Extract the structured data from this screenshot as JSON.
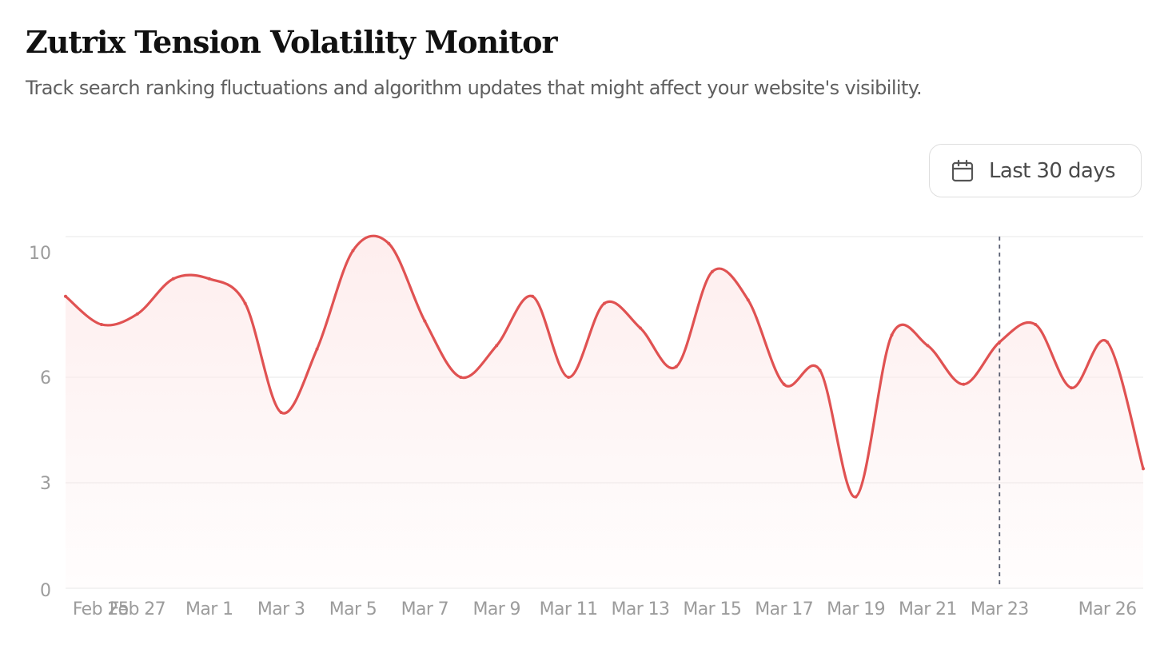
{
  "header": {
    "title": "Zutrix Tension Volatility Monitor",
    "subtitle": "Track search ranking fluctuations and algorithm updates that might affect your website's visibility."
  },
  "range_selector": {
    "label": "Last 30 days",
    "icon": "calendar-icon"
  },
  "colors": {
    "line": "#e05252",
    "fill": "#fde8e8",
    "grid": "#ececec",
    "axis_text": "#9c9c9c",
    "marker": "#5a6072"
  },
  "chart_data": {
    "type": "area",
    "title": "",
    "xlabel": "",
    "ylabel": "",
    "ylim": [
      0,
      10
    ],
    "y_ticks": [
      0,
      3,
      6,
      10
    ],
    "grid": true,
    "x": [
      "Feb 25",
      "Feb 26",
      "Feb 27",
      "Feb 28",
      "Mar 1",
      "Mar 2",
      "Mar 3",
      "Mar 4",
      "Mar 5",
      "Mar 6",
      "Mar 7",
      "Mar 8",
      "Mar 9",
      "Mar 10",
      "Mar 11",
      "Mar 12",
      "Mar 13",
      "Mar 14",
      "Mar 15",
      "Mar 16",
      "Mar 17",
      "Mar 18",
      "Mar 19",
      "Mar 20",
      "Mar 21",
      "Mar 22",
      "Mar 23",
      "Mar 24",
      "Mar 25",
      "Mar 26",
      "Mar 27"
    ],
    "x_tick_labels": [
      "Feb 25",
      "Feb 27",
      "Mar 1",
      "Mar 3",
      "Mar 5",
      "Mar 7",
      "Mar 9",
      "Mar 11",
      "Mar 13",
      "Mar 15",
      "Mar 17",
      "Mar 19",
      "Mar 21",
      "Mar 23",
      "Mar 26"
    ],
    "series": [
      {
        "values": [
          8.3,
          7.5,
          7.8,
          8.8,
          8.8,
          8.1,
          5.0,
          6.8,
          9.6,
          9.8,
          7.6,
          6.0,
          6.9,
          8.3,
          6.0,
          8.1,
          7.4,
          6.3,
          9.0,
          8.2,
          5.8,
          6.2,
          2.6,
          7.2,
          6.9,
          5.8,
          7.0,
          7.5,
          5.7,
          7.0,
          3.4
        ]
      }
    ],
    "highlight_x": "Mar 23"
  }
}
